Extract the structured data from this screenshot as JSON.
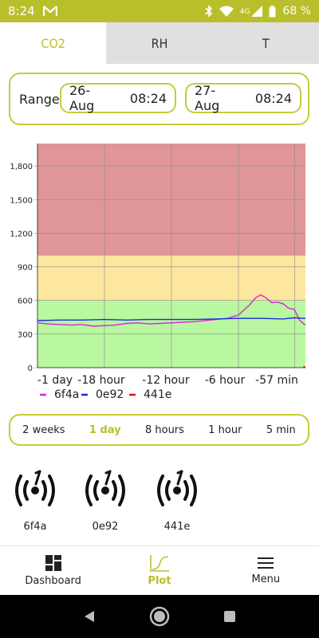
{
  "status": {
    "time": "8:24",
    "mail_icon": "gmail-icon",
    "network": "4G",
    "battery": "68 %"
  },
  "tabs": [
    {
      "label": "CO2",
      "active": true
    },
    {
      "label": "RH",
      "active": false
    },
    {
      "label": "T",
      "active": false
    }
  ],
  "range": {
    "label": "Range",
    "from": {
      "date": "26-Aug",
      "time": "08:24"
    },
    "to": {
      "date": "27-Aug",
      "time": "08:24"
    }
  },
  "chart_data": {
    "type": "line",
    "y_ticks": [
      "0",
      "300",
      "600",
      "900",
      "1,200",
      "1,500",
      "1,800"
    ],
    "ylim": [
      0,
      2000
    ],
    "x_ticks": [
      "-1 day",
      "-18 hour",
      "-12 hour",
      "-6 hour",
      "-57 min"
    ],
    "bands": [
      {
        "from": 0,
        "to": 600,
        "color": "#b9f7a0"
      },
      {
        "from": 600,
        "to": 1000,
        "color": "#fde79e"
      },
      {
        "from": 1000,
        "to": 2000,
        "color": "#e09696"
      }
    ],
    "series": [
      {
        "name": "6f4a",
        "color": "#e020e0",
        "x": [
          0,
          1,
          2,
          3,
          4,
          5,
          6,
          7,
          8,
          9,
          10,
          11,
          12,
          13,
          14,
          15,
          16,
          17,
          18,
          19,
          19.5,
          20,
          20.5,
          21,
          21.5,
          22,
          22.5,
          23,
          23.5,
          24
        ],
        "y": [
          400,
          390,
          385,
          380,
          385,
          370,
          375,
          380,
          395,
          400,
          390,
          395,
          400,
          405,
          410,
          420,
          430,
          440,
          470,
          560,
          620,
          650,
          620,
          580,
          585,
          570,
          530,
          520,
          420,
          380
        ]
      },
      {
        "name": "0e92",
        "color": "#1a2ee0",
        "x": [
          0,
          2,
          4,
          6,
          8,
          10,
          12,
          14,
          16,
          18,
          20,
          22,
          23,
          24
        ],
        "y": [
          420,
          425,
          425,
          430,
          425,
          430,
          430,
          430,
          435,
          440,
          440,
          435,
          445,
          440
        ]
      },
      {
        "name": "441e",
        "color": "#e01010",
        "x": [
          23.8,
          24
        ],
        "y": [
          5,
          5
        ]
      }
    ]
  },
  "periods": [
    {
      "label": "2 weeks",
      "active": false
    },
    {
      "label": "1 day",
      "active": true
    },
    {
      "label": "8 hours",
      "active": false
    },
    {
      "label": "1 hour",
      "active": false
    },
    {
      "label": "5 min",
      "active": false
    }
  ],
  "sensors": [
    {
      "name": "6f4a",
      "icon": "sensor-signal-icon"
    },
    {
      "name": "0e92",
      "icon": "sensor-signal-icon"
    },
    {
      "name": "441e",
      "icon": "sensor-signal-icon"
    }
  ],
  "bottom_nav": [
    {
      "label": "Dashboard",
      "icon": "dashboard-icon",
      "active": false
    },
    {
      "label": "Plot",
      "icon": "plot-icon",
      "active": true
    },
    {
      "label": "Menu",
      "icon": "menu-icon",
      "active": false
    }
  ]
}
